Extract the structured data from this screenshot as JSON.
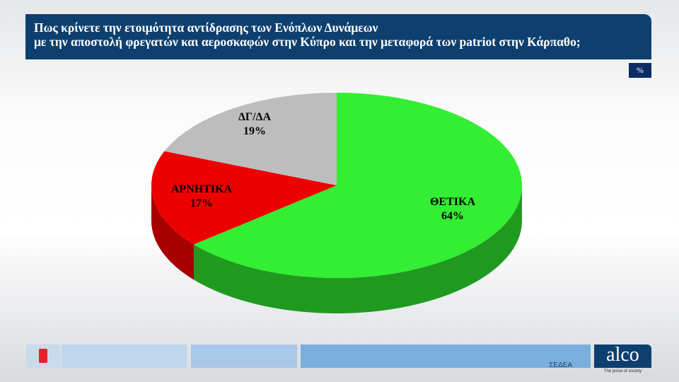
{
  "header": {
    "title_line1": "Πως κρίνετε την ετοιμότητα αντίδρασης των Ενόπλων Δυνάμεων",
    "title_line2": "με την αποστολή φρεγατών και αεροσκαφών στην Κύπρο και την μεταφορά των patriot στην Κάρπαθο;"
  },
  "unit_badge": "%",
  "chart_data": {
    "type": "pie",
    "3d": true,
    "categories": [
      "ΘΕΤΙΚΑ",
      "ΑΡΝΗΤΙΚΑ",
      "ΔΓ/ΔΑ"
    ],
    "values": [
      64,
      17,
      19
    ],
    "labels": [
      "64%",
      "17%",
      "19%"
    ],
    "colors": [
      "#33ee33",
      "#ee0000",
      "#bdbdbd"
    ],
    "side_colors": [
      "#1f9a1f",
      "#a80000",
      "#8a8a8a"
    ]
  },
  "footer": {
    "logo_left": "ALPHA",
    "logo_sedea": "ΣΕΔΕΑ",
    "logo_alco": "alco",
    "alco_tagline": "The pulse of society"
  }
}
